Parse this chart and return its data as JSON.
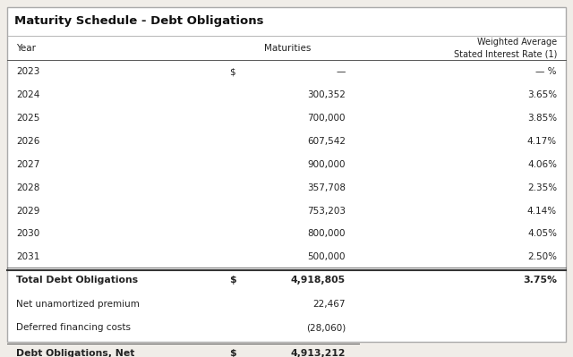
{
  "title": "Maturity Schedule - Debt Obligations",
  "header_col1": "Year",
  "header_col2": "Maturities",
  "header_col3_line1": "Weighted Average",
  "header_col3_line2": "Stated Interest Rate (1)",
  "rows": [
    {
      "year": "2023",
      "dollar": "$",
      "maturity": "—",
      "rate": "— %"
    },
    {
      "year": "2024",
      "dollar": "",
      "maturity": "300,352",
      "rate": "3.65%"
    },
    {
      "year": "2025",
      "dollar": "",
      "maturity": "700,000",
      "rate": "3.85%"
    },
    {
      "year": "2026",
      "dollar": "",
      "maturity": "607,542",
      "rate": "4.17%"
    },
    {
      "year": "2027",
      "dollar": "",
      "maturity": "900,000",
      "rate": "4.06%"
    },
    {
      "year": "2028",
      "dollar": "",
      "maturity": "357,708",
      "rate": "2.35%"
    },
    {
      "year": "2029",
      "dollar": "",
      "maturity": "753,203",
      "rate": "4.14%"
    },
    {
      "year": "2030",
      "dollar": "",
      "maturity": "800,000",
      "rate": "4.05%"
    },
    {
      "year": "2031",
      "dollar": "",
      "maturity": "500,000",
      "rate": "2.50%"
    }
  ],
  "total_label": "Total Debt Obligations",
  "total_dollar": "$",
  "total_maturity": "4,918,805",
  "total_rate": "3.75%",
  "footer_rows": [
    {
      "label": "Net unamortized premium",
      "maturity": "22,467"
    },
    {
      "label": "Deferred financing costs",
      "maturity": "(28,060)"
    }
  ],
  "net_label": "Debt Obligations, Net",
  "net_dollar": "$",
  "net_maturity": "4,913,212",
  "outer_bg": "#f0ede8",
  "inner_bg": "#ffffff",
  "border_color": "#aaaaaa",
  "text_color": "#222222",
  "line_color": "#555555"
}
